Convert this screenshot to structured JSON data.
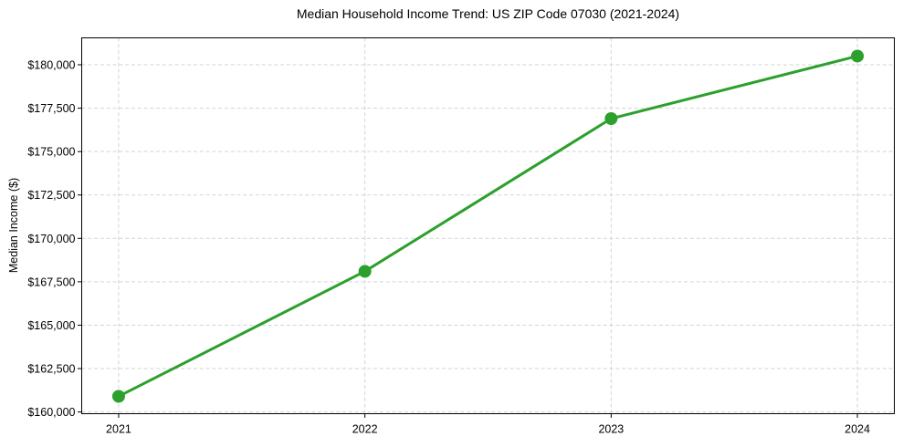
{
  "chart_data": {
    "type": "line",
    "title": "Median Household Income Trend: US ZIP Code 07030 (2021-2024)",
    "xlabel": "",
    "ylabel": "Median Income ($)",
    "x": [
      2021,
      2022,
      2023,
      2024
    ],
    "series": [
      {
        "name": "Median Household Income",
        "values": [
          160900,
          168100,
          176900,
          180500
        ]
      }
    ],
    "xticks": [
      2021,
      2022,
      2023,
      2024
    ],
    "xtick_labels": [
      "2021",
      "2022",
      "2023",
      "2024"
    ],
    "yticks": [
      160000,
      162500,
      165000,
      167500,
      170000,
      172500,
      175000,
      177500,
      180000
    ],
    "ytick_labels": [
      "$160,000",
      "$162,500",
      "$165,000",
      "$167,500",
      "$170,000",
      "$172,500",
      "$175,000",
      "$177,500",
      "$180,000"
    ],
    "xlim": [
      2020.85,
      2024.15
    ],
    "ylim": [
      159900,
      181550
    ],
    "grid": true,
    "legend": false,
    "marker": "circle",
    "colors": {
      "line": "#2ca02c",
      "grid": "#d3d3d3",
      "axis": "#000000",
      "text": "#000000",
      "background": "#ffffff"
    }
  }
}
